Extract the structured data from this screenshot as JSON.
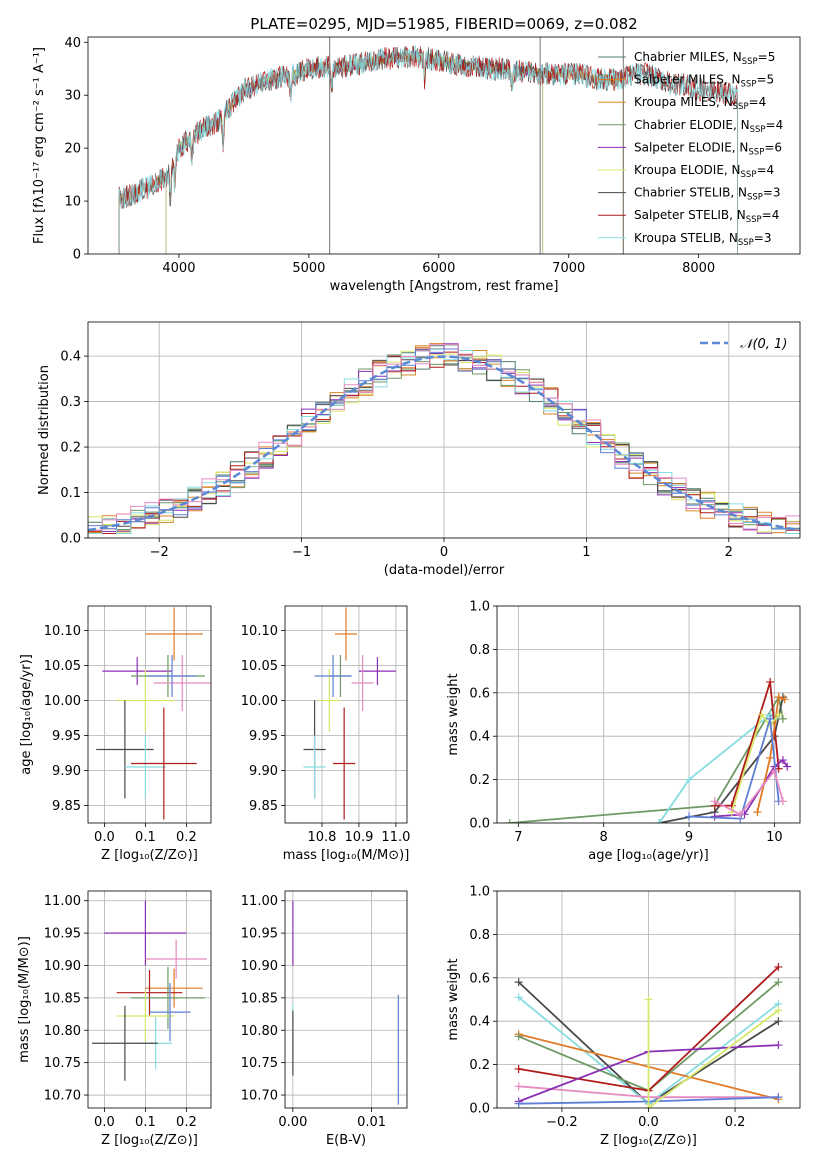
{
  "figure": {
    "title": "PLATE=0295, MJD=51985, FIBERID=0069, z=0.082"
  },
  "colors": {
    "Chabrier MILES": "#4e7f6f",
    "Salpeter MILES": "#e07a26",
    "Kroupa MILES": "#d58a2a",
    "Chabrier ELODIE": "#6f9a65",
    "Salpeter ELODIE": "#8a2fb3",
    "Kroupa ELODIE": "#d6e86a",
    "Chabrier STELIB": "#4a4a4a",
    "Salpeter STELIB": "#b01a1a",
    "Kroupa STELIB": "#86dce0",
    "extra_blue": "#5f7fd6",
    "extra_pink": "#e68bc1",
    "gauss": "#5b88d4"
  },
  "chart_data": [
    {
      "id": "spectrum",
      "type": "line",
      "title": "PLATE=0295, MJD=51985, FIBERID=0069, z=0.082",
      "xlabel": "wavelength [Angstrom, rest frame]",
      "ylabel": "Flux [fλ10⁻¹⁷ erg cm⁻² s⁻¹ A⁻¹]",
      "xlim": [
        3300,
        8780
      ],
      "ylim": [
        0,
        41
      ],
      "xticks": [
        4000,
        5000,
        6000,
        7000,
        8000
      ],
      "yticks": [
        0,
        10,
        20,
        30,
        40
      ],
      "legend_position": "top-right",
      "legend": [
        "Chabrier MILES, N_SSP=5",
        "Salpeter MILES, N_SSP=5",
        "Kroupa MILES, N_SSP=4",
        "Chabrier ELODIE, N_SSP=4",
        "Salpeter ELODIE, N_SSP=6",
        "Kroupa ELODIE, N_SSP=4",
        "Chabrier STELIB, N_SSP=3",
        "Salpeter STELIB, N_SSP=4",
        "Kroupa STELIB, N_SSP=3"
      ],
      "continuum": [
        [
          3550,
          10.5
        ],
        [
          3620,
          11
        ],
        [
          3700,
          12
        ],
        [
          3800,
          13
        ],
        [
          3900,
          14.5
        ],
        [
          3950,
          17
        ],
        [
          4000,
          20
        ],
        [
          4100,
          22
        ],
        [
          4200,
          24
        ],
        [
          4300,
          25
        ],
        [
          4400,
          28
        ],
        [
          4500,
          31
        ],
        [
          4600,
          32
        ],
        [
          4700,
          33
        ],
        [
          4800,
          33.5
        ],
        [
          4900,
          34
        ],
        [
          5000,
          35
        ],
        [
          5100,
          35.5
        ],
        [
          5200,
          35
        ],
        [
          5300,
          35.5
        ],
        [
          5400,
          36
        ],
        [
          5500,
          36.5
        ],
        [
          5600,
          37
        ],
        [
          5700,
          37
        ],
        [
          5800,
          37.5
        ],
        [
          5900,
          37
        ],
        [
          6000,
          36.5
        ],
        [
          6100,
          36
        ],
        [
          6200,
          35.5
        ],
        [
          6300,
          35.5
        ],
        [
          6400,
          35
        ],
        [
          6500,
          35
        ],
        [
          6600,
          34.5
        ],
        [
          6700,
          34.5
        ],
        [
          6800,
          34
        ],
        [
          6900,
          34
        ],
        [
          7000,
          34
        ],
        [
          7100,
          34
        ],
        [
          7200,
          33
        ],
        [
          7300,
          33
        ],
        [
          7400,
          33
        ],
        [
          7500,
          34
        ],
        [
          7600,
          34
        ],
        [
          7700,
          33
        ],
        [
          7800,
          32
        ],
        [
          7900,
          32
        ],
        [
          8000,
          31
        ],
        [
          8100,
          31
        ],
        [
          8200,
          30.5
        ],
        [
          8300,
          30
        ]
      ],
      "dips": [
        [
          3934,
          6
        ],
        [
          3968,
          5
        ],
        [
          4101,
          4
        ],
        [
          4340,
          5
        ],
        [
          4861,
          4
        ],
        [
          5175,
          4
        ],
        [
          5890,
          4
        ],
        [
          6563,
          3
        ]
      ],
      "series_ranges": {
        "Chabrier MILES": [
          3540,
          7420
        ],
        "Salpeter MILES": [
          3540,
          7420
        ],
        "Kroupa MILES": [
          3540,
          7420
        ],
        "Chabrier ELODIE": [
          3900,
          6800
        ],
        "Salpeter ELODIE": [
          3900,
          6800
        ],
        "Kroupa ELODIE": [
          3900,
          6800
        ],
        "Chabrier STELIB": [
          3540,
          8300
        ],
        "Salpeter STELIB": [
          3540,
          8300
        ],
        "Kroupa STELIB": [
          3540,
          8300
        ]
      },
      "vlines": [
        5160,
        6780,
        7420
      ]
    },
    {
      "id": "residual_hist",
      "type": "line",
      "xlabel": "(data-model)/error",
      "ylabel": "Normed distribution",
      "xlim": [
        -2.5,
        2.5
      ],
      "ylim": [
        0,
        0.475
      ],
      "xticks": [
        -2,
        -1,
        0,
        1,
        2
      ],
      "yticks": [
        0.0,
        0.1,
        0.2,
        0.3,
        0.4
      ],
      "legend_position": "top-right",
      "legend": [
        "𝒩(0, 1)"
      ],
      "gaussian_mean": 0,
      "gaussian_sigma": 1,
      "bin_width": 0.1,
      "bin_start": -2.5
    },
    {
      "id": "age_vs_Z",
      "type": "scatter",
      "xlabel": "Z [log₁₀(Z/Z⊙)]",
      "ylabel": "age  [log₁₀(age/yr)]",
      "xlim": [
        -0.04,
        0.26
      ],
      "ylim": [
        9.825,
        10.135
      ],
      "xticks": [
        0.0,
        0.1,
        0.2
      ],
      "yticks": [
        9.85,
        9.9,
        9.95,
        10.0,
        10.05,
        10.1
      ],
      "points": [
        {
          "c": "Salpeter MILES",
          "x": 0.17,
          "y": 10.095,
          "xerr": 0.07,
          "yerr": 0.038
        },
        {
          "c": "Salpeter ELODIE",
          "x": 0.08,
          "y": 10.042,
          "xerr": 0.085,
          "yerr": 0.02
        },
        {
          "c": "Kroupa ELODIE",
          "x": 0.1,
          "y": 10.0,
          "xerr": 0.07,
          "yerr": 0.045
        },
        {
          "c": "Chabrier ELODIE",
          "x": 0.155,
          "y": 10.035,
          "xerr": 0.09,
          "yerr": 0.03
        },
        {
          "c": "extra_pink",
          "x": 0.19,
          "y": 10.025,
          "xerr": 0.07,
          "yerr": 0.04
        },
        {
          "c": "extra_blue",
          "x": 0.165,
          "y": 10.035,
          "xerr": 0.06,
          "yerr": 0.03
        },
        {
          "c": "Chabrier STELIB",
          "x": 0.05,
          "y": 9.93,
          "xerr": 0.07,
          "yerr": 0.07
        },
        {
          "c": "Kroupa STELIB",
          "x": 0.1,
          "y": 9.905,
          "xerr": 0.05,
          "yerr": 0.045
        },
        {
          "c": "Salpeter STELIB",
          "x": 0.145,
          "y": 9.91,
          "xerr": 0.08,
          "yerr": 0.08
        }
      ]
    },
    {
      "id": "age_vs_mass",
      "type": "scatter",
      "xlabel": "mass [log₁₀(M/M⊙)]",
      "ylabel": "",
      "xlim": [
        10.7,
        11.03
      ],
      "ylim": [
        9.825,
        10.135
      ],
      "xticks": [
        10.8,
        10.9,
        11.0
      ],
      "yticks": [
        9.85,
        9.9,
        9.95,
        10.0,
        10.05,
        10.1
      ],
      "points": [
        {
          "c": "Salpeter MILES",
          "x": 10.865,
          "y": 10.095,
          "xerr": 0.03,
          "yerr": 0.038
        },
        {
          "c": "Salpeter ELODIE",
          "x": 10.95,
          "y": 10.042,
          "xerr": 0.05,
          "yerr": 0.02
        },
        {
          "c": "extra_pink",
          "x": 10.91,
          "y": 10.025,
          "xerr": 0.03,
          "yerr": 0.04
        },
        {
          "c": "Kroupa ELODIE",
          "x": 10.82,
          "y": 10.0,
          "xerr": 0.03,
          "yerr": 0.045
        },
        {
          "c": "Chabrier ELODIE",
          "x": 10.85,
          "y": 10.035,
          "xerr": 0.03,
          "yerr": 0.03
        },
        {
          "c": "extra_blue",
          "x": 10.83,
          "y": 10.035,
          "xerr": 0.05,
          "yerr": 0.03
        },
        {
          "c": "Chabrier STELIB",
          "x": 10.78,
          "y": 9.93,
          "xerr": 0.03,
          "yerr": 0.07
        },
        {
          "c": "Kroupa STELIB",
          "x": 10.78,
          "y": 9.905,
          "xerr": 0.03,
          "yerr": 0.045
        },
        {
          "c": "Salpeter STELIB",
          "x": 10.86,
          "y": 9.91,
          "xerr": 0.03,
          "yerr": 0.08
        }
      ]
    },
    {
      "id": "weight_vs_age",
      "type": "line",
      "xlabel": "age  [log₁₀(age/yr)]",
      "ylabel": "mass weight",
      "xlim": [
        6.75,
        10.3
      ],
      "ylim": [
        0,
        1.0
      ],
      "xticks": [
        7,
        8,
        9,
        10
      ],
      "yticks": [
        0.0,
        0.2,
        0.4,
        0.6,
        0.8,
        1.0
      ],
      "series": [
        {
          "c": "Chabrier ELODIE",
          "x": [
            6.9,
            9.3,
            10.05,
            10.1
          ],
          "y": [
            0.0,
            0.08,
            0.58,
            0.48
          ]
        },
        {
          "c": "Chabrier STELIB",
          "x": [
            8.65,
            9.3,
            10.0,
            10.1
          ],
          "y": [
            0.0,
            0.05,
            0.4,
            0.58
          ]
        },
        {
          "c": "Kroupa STELIB",
          "x": [
            8.65,
            9.0,
            9.95,
            10.0
          ],
          "y": [
            0.0,
            0.2,
            0.5,
            0.48
          ]
        },
        {
          "c": "Salpeter STELIB",
          "x": [
            9.3,
            9.5,
            9.95,
            10.05
          ],
          "y": [
            0.08,
            0.08,
            0.65,
            0.25
          ]
        },
        {
          "c": "Salpeter ELODIE",
          "x": [
            9.3,
            9.65,
            10.0,
            10.1,
            10.15
          ],
          "y": [
            0.03,
            0.04,
            0.26,
            0.29,
            0.26
          ]
        },
        {
          "c": "Salpeter MILES",
          "x": [
            9.8,
            9.95,
            10.05,
            10.12
          ],
          "y": [
            0.05,
            0.3,
            0.58,
            0.57
          ]
        },
        {
          "c": "Kroupa ELODIE",
          "x": [
            9.5,
            9.85,
            9.95,
            10.05
          ],
          "y": [
            0.05,
            0.5,
            0.45,
            0.5
          ]
        },
        {
          "c": "extra_blue",
          "x": [
            9.0,
            9.6,
            9.95,
            10.05
          ],
          "y": [
            0.03,
            0.02,
            0.48,
            0.1
          ]
        },
        {
          "c": "extra_pink",
          "x": [
            9.3,
            9.6,
            10.0,
            10.1
          ],
          "y": [
            0.1,
            0.04,
            0.24,
            0.1
          ]
        }
      ]
    },
    {
      "id": "mass_vs_Z",
      "type": "scatter",
      "xlabel": "Z [log₁₀(Z/Z⊙)]",
      "ylabel": "mass [log₁₀(M/M⊙)]",
      "xlim": [
        -0.04,
        0.26
      ],
      "ylim": [
        10.68,
        11.015
      ],
      "xticks": [
        0.0,
        0.1,
        0.2
      ],
      "yticks": [
        10.7,
        10.75,
        10.8,
        10.85,
        10.9,
        10.95,
        11.0
      ],
      "points": [
        {
          "c": "Salpeter ELODIE",
          "x": 0.1,
          "y": 10.95,
          "xerr": 0.1,
          "yerr": 0.05
        },
        {
          "c": "extra_pink",
          "x": 0.175,
          "y": 10.91,
          "xerr": 0.075,
          "yerr": 0.03
        },
        {
          "c": "Salpeter MILES",
          "x": 0.17,
          "y": 10.865,
          "xerr": 0.07,
          "yerr": 0.03
        },
        {
          "c": "Salpeter STELIB",
          "x": 0.11,
          "y": 10.858,
          "xerr": 0.08,
          "yerr": 0.035
        },
        {
          "c": "Chabrier ELODIE",
          "x": 0.155,
          "y": 10.85,
          "xerr": 0.09,
          "yerr": 0.048
        },
        {
          "c": "Kroupa ELODIE",
          "x": 0.1,
          "y": 10.822,
          "xerr": 0.07,
          "yerr": 0.04
        },
        {
          "c": "extra_blue",
          "x": 0.16,
          "y": 10.828,
          "xerr": 0.05,
          "yerr": 0.045
        },
        {
          "c": "Kroupa STELIB",
          "x": 0.125,
          "y": 10.78,
          "xerr": 0.04,
          "yerr": 0.04
        },
        {
          "c": "Chabrier STELIB",
          "x": 0.05,
          "y": 10.78,
          "xerr": 0.08,
          "yerr": 0.058
        }
      ]
    },
    {
      "id": "mass_vs_ebv",
      "type": "scatter",
      "xlabel": "E(B-V)",
      "ylabel": "",
      "xlim": [
        -0.001,
        0.0145
      ],
      "ylim": [
        10.68,
        11.015
      ],
      "xticks": [
        0.0,
        0.01
      ],
      "yticks": [
        10.7,
        10.75,
        10.8,
        10.85,
        10.9,
        10.95,
        11.0
      ],
      "points": [
        {
          "c": "Salpeter ELODIE",
          "x": 0.0,
          "y": 10.95,
          "xerr": 0.0,
          "yerr": 0.05
        },
        {
          "c": "Kroupa STELIB",
          "x": 0.0,
          "y": 10.79,
          "xerr": 0.0,
          "yerr": 0.05
        },
        {
          "c": "Chabrier STELIB",
          "x": 0.0,
          "y": 10.78,
          "xerr": 0.0,
          "yerr": 0.05
        },
        {
          "c": "extra_blue",
          "x": 0.0134,
          "y": 10.77,
          "xerr": 0.0,
          "yerr": 0.085
        }
      ]
    },
    {
      "id": "weight_vs_Z",
      "type": "line",
      "xlabel": "Z [log₁₀(Z/Z⊙)]",
      "ylabel": "mass weight",
      "xlim": [
        -0.35,
        0.35
      ],
      "ylim": [
        0,
        1.0
      ],
      "xticks": [
        -0.2,
        0.0,
        0.2
      ],
      "yticks": [
        0.0,
        0.2,
        0.4,
        0.6,
        0.8,
        1.0
      ],
      "series": [
        {
          "c": "Chabrier STELIB",
          "x": [
            -0.3,
            0.0,
            0.3
          ],
          "y": [
            0.58,
            0.02,
            0.4
          ]
        },
        {
          "c": "Kroupa STELIB",
          "x": [
            -0.3,
            0.0,
            0.3
          ],
          "y": [
            0.51,
            0.02,
            0.48
          ]
        },
        {
          "c": "Salpeter MILES",
          "x": [
            -0.3,
            0.3
          ],
          "y": [
            0.34,
            0.04
          ]
        },
        {
          "c": "Chabrier ELODIE",
          "x": [
            -0.3,
            0.0,
            0.3
          ],
          "y": [
            0.33,
            0.08,
            0.58
          ]
        },
        {
          "c": "Salpeter STELIB",
          "x": [
            -0.3,
            0.0,
            0.3
          ],
          "y": [
            0.18,
            0.08,
            0.65
          ]
        },
        {
          "c": "extra_pink",
          "x": [
            -0.3,
            0.0,
            0.3
          ],
          "y": [
            0.1,
            0.05,
            0.05
          ]
        },
        {
          "c": "Salpeter ELODIE",
          "x": [
            -0.3,
            0.0,
            0.3
          ],
          "y": [
            0.03,
            0.26,
            0.29
          ]
        },
        {
          "c": "extra_blue",
          "x": [
            -0.3,
            0.0,
            0.3
          ],
          "y": [
            0.02,
            0.03,
            0.05
          ]
        },
        {
          "c": "Kroupa ELODIE",
          "x": [
            0.0,
            0.0,
            0.3
          ],
          "y": [
            0.5,
            0.0,
            0.45
          ]
        }
      ]
    }
  ]
}
